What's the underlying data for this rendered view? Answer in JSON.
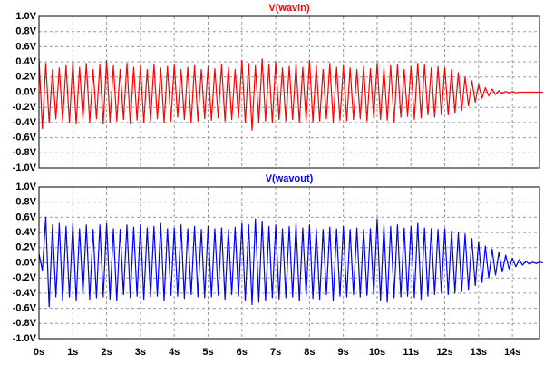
{
  "chart_data": [
    {
      "type": "line",
      "title": "V(wavin)",
      "color": "#ff0000",
      "grid": true,
      "xlim": [
        0,
        14.8
      ],
      "xticks": [
        0,
        1,
        2,
        3,
        4,
        5,
        6,
        7,
        8,
        9,
        10,
        11,
        12,
        13,
        14
      ],
      "ylim": [
        -1,
        1
      ],
      "yticks": [
        {
          "value": 1,
          "label": "1.0V"
        },
        {
          "value": 0.8,
          "label": "0.8V"
        },
        {
          "value": 0.6,
          "label": "0.6V"
        },
        {
          "value": 0.4,
          "label": "0.4V"
        },
        {
          "value": 0.2,
          "label": "0.2V"
        },
        {
          "value": 0,
          "label": "0.0V"
        },
        {
          "value": -0.2,
          "label": "-0.2V"
        },
        {
          "value": -0.4,
          "label": "-0.4V"
        },
        {
          "value": -0.6,
          "label": "-0.6V"
        },
        {
          "value": -0.8,
          "label": "-0.8V"
        },
        {
          "value": -1,
          "label": "-1.0V"
        }
      ],
      "x": [
        0,
        0.1,
        0.2,
        0.3,
        0.4,
        0.5,
        0.6,
        0.7,
        0.8,
        0.9,
        1,
        1.1,
        1.2,
        1.3,
        1.4,
        1.5,
        1.6,
        1.7,
        1.8,
        1.9,
        2,
        2.1,
        2.2,
        2.3,
        2.4,
        2.5,
        2.6,
        2.7,
        2.8,
        2.9,
        3,
        3.1,
        3.2,
        3.3,
        3.4,
        3.5,
        3.6,
        3.7,
        3.8,
        3.9,
        4,
        4.1,
        4.2,
        4.3,
        4.4,
        4.5,
        4.6,
        4.7,
        4.8,
        4.9,
        5,
        5.1,
        5.2,
        5.3,
        5.4,
        5.5,
        5.6,
        5.7,
        5.8,
        5.9,
        6,
        6.1,
        6.2,
        6.3,
        6.4,
        6.5,
        6.6,
        6.7,
        6.8,
        6.9,
        7,
        7.1,
        7.2,
        7.3,
        7.4,
        7.5,
        7.6,
        7.7,
        7.8,
        7.9,
        8,
        8.1,
        8.2,
        8.3,
        8.4,
        8.5,
        8.6,
        8.7,
        8.8,
        8.9,
        9,
        9.1,
        9.2,
        9.3,
        9.4,
        9.5,
        9.6,
        9.7,
        9.8,
        9.9,
        10,
        10.1,
        10.2,
        10.3,
        10.4,
        10.5,
        10.6,
        10.7,
        10.8,
        10.9,
        11,
        11.1,
        11.2,
        11.3,
        11.4,
        11.5,
        11.6,
        11.7,
        11.8,
        11.9,
        12,
        12.1,
        12.2,
        12.3,
        12.4,
        12.5,
        12.6,
        12.7,
        12.8,
        12.9,
        13,
        13.1,
        13.2,
        13.3,
        13.4,
        13.5,
        13.6,
        13.7,
        13.8,
        13.9,
        14,
        14.1,
        14.2,
        14.3,
        14.4,
        14.5,
        14.6,
        14.7,
        14.8,
        14.9
      ],
      "values": [
        0.45,
        -0.48,
        0.38,
        -0.4,
        0.3,
        -0.35,
        0.32,
        -0.38,
        0.35,
        -0.4,
        0.4,
        -0.42,
        0.33,
        -0.36,
        0.38,
        -0.4,
        0.3,
        -0.35,
        0.36,
        -0.42,
        0.42,
        -0.4,
        0.35,
        -0.38,
        0.3,
        -0.36,
        0.38,
        -0.42,
        0.33,
        -0.37,
        0.35,
        -0.4,
        0.3,
        -0.38,
        0.37,
        -0.35,
        0.32,
        -0.4,
        0.34,
        -0.38,
        0.36,
        -0.33,
        0.3,
        -0.36,
        0.33,
        -0.4,
        0.35,
        -0.38,
        0.3,
        -0.35,
        0.34,
        -0.37,
        0.31,
        -0.34,
        0.36,
        -0.38,
        0.33,
        -0.36,
        0.3,
        -0.34,
        0.42,
        -0.4,
        0.38,
        -0.5,
        0.35,
        -0.4,
        0.44,
        -0.38,
        0.36,
        -0.4,
        0.4,
        -0.36,
        0.32,
        -0.38,
        0.34,
        -0.36,
        0.37,
        -0.4,
        0.33,
        -0.38,
        0.42,
        -0.39,
        0.35,
        -0.38,
        0.3,
        -0.35,
        0.38,
        -0.4,
        0.33,
        -0.37,
        0.35,
        -0.38,
        0.32,
        -0.36,
        0.3,
        -0.35,
        0.34,
        -0.38,
        0.31,
        -0.34,
        0.38,
        -0.36,
        0.32,
        -0.37,
        0.35,
        -0.4,
        0.36,
        -0.33,
        0.3,
        -0.32,
        0.34,
        -0.36,
        0.38,
        -0.34,
        0.36,
        -0.3,
        0.32,
        -0.33,
        0.34,
        -0.3,
        0.32,
        -0.3,
        0.3,
        -0.28,
        0.26,
        -0.24,
        0.2,
        -0.18,
        0.15,
        -0.13,
        0.1,
        -0.08,
        0.06,
        -0.05,
        0.04,
        -0.03,
        0.02,
        -0.02,
        0.01,
        -0.01,
        0.01,
        -0.01,
        0,
        0,
        0,
        0,
        0,
        0,
        0,
        0
      ]
    },
    {
      "type": "line",
      "title": "V(wavout)",
      "color": "#0000ff",
      "grid": true,
      "xlim": [
        0,
        14.8
      ],
      "xticks": [
        {
          "value": 0,
          "label": "0s"
        },
        {
          "value": 1,
          "label": "1s"
        },
        {
          "value": 2,
          "label": "2s"
        },
        {
          "value": 3,
          "label": "3s"
        },
        {
          "value": 4,
          "label": "4s"
        },
        {
          "value": 5,
          "label": "5s"
        },
        {
          "value": 6,
          "label": "6s"
        },
        {
          "value": 7,
          "label": "7s"
        },
        {
          "value": 8,
          "label": "8s"
        },
        {
          "value": 9,
          "label": "9s"
        },
        {
          "value": 10,
          "label": "10s"
        },
        {
          "value": 11,
          "label": "11s"
        },
        {
          "value": 12,
          "label": "12s"
        },
        {
          "value": 13,
          "label": "13s"
        },
        {
          "value": 14,
          "label": "14s"
        }
      ],
      "ylim": [
        -1,
        1
      ],
      "yticks": [
        {
          "value": 1,
          "label": "1.0V"
        },
        {
          "value": 0.8,
          "label": "0.8V"
        },
        {
          "value": 0.6,
          "label": "0.6V"
        },
        {
          "value": 0.4,
          "label": "0.4V"
        },
        {
          "value": 0.2,
          "label": "0.2V"
        },
        {
          "value": 0,
          "label": "0.0V"
        },
        {
          "value": -0.2,
          "label": "-0.2V"
        },
        {
          "value": -0.4,
          "label": "-0.4V"
        },
        {
          "value": -0.6,
          "label": "-0.6V"
        },
        {
          "value": -0.8,
          "label": "-0.8V"
        },
        {
          "value": -1,
          "label": "-1.0V"
        }
      ],
      "x": [
        0,
        0.1,
        0.2,
        0.3,
        0.4,
        0.5,
        0.6,
        0.7,
        0.8,
        0.9,
        1,
        1.1,
        1.2,
        1.3,
        1.4,
        1.5,
        1.6,
        1.7,
        1.8,
        1.9,
        2,
        2.1,
        2.2,
        2.3,
        2.4,
        2.5,
        2.6,
        2.7,
        2.8,
        2.9,
        3,
        3.1,
        3.2,
        3.3,
        3.4,
        3.5,
        3.6,
        3.7,
        3.8,
        3.9,
        4,
        4.1,
        4.2,
        4.3,
        4.4,
        4.5,
        4.6,
        4.7,
        4.8,
        4.9,
        5,
        5.1,
        5.2,
        5.3,
        5.4,
        5.5,
        5.6,
        5.7,
        5.8,
        5.9,
        6,
        6.1,
        6.2,
        6.3,
        6.4,
        6.5,
        6.6,
        6.7,
        6.8,
        6.9,
        7,
        7.1,
        7.2,
        7.3,
        7.4,
        7.5,
        7.6,
        7.7,
        7.8,
        7.9,
        8,
        8.1,
        8.2,
        8.3,
        8.4,
        8.5,
        8.6,
        8.7,
        8.8,
        8.9,
        9,
        9.1,
        9.2,
        9.3,
        9.4,
        9.5,
        9.6,
        9.7,
        9.8,
        9.9,
        10,
        10.1,
        10.2,
        10.3,
        10.4,
        10.5,
        10.6,
        10.7,
        10.8,
        10.9,
        11,
        11.1,
        11.2,
        11.3,
        11.4,
        11.5,
        11.6,
        11.7,
        11.8,
        11.9,
        12,
        12.1,
        12.2,
        12.3,
        12.4,
        12.5,
        12.6,
        12.7,
        12.8,
        12.9,
        13,
        13.1,
        13.2,
        13.3,
        13.4,
        13.5,
        13.6,
        13.7,
        13.8,
        13.9,
        14,
        14.1,
        14.2,
        14.3,
        14.4,
        14.5,
        14.6,
        14.7,
        14.8,
        14.9
      ],
      "values": [
        0.12,
        -0.1,
        0.6,
        -0.58,
        0.5,
        -0.45,
        0.52,
        -0.5,
        0.48,
        -0.45,
        0.52,
        -0.5,
        0.45,
        -0.42,
        0.5,
        -0.48,
        0.44,
        -0.46,
        0.5,
        -0.45,
        0.52,
        -0.48,
        0.45,
        -0.5,
        0.44,
        -0.42,
        0.5,
        -0.46,
        0.47,
        -0.44,
        0.5,
        -0.48,
        0.46,
        -0.45,
        0.48,
        -0.44,
        0.52,
        -0.5,
        0.45,
        -0.43,
        0.46,
        -0.44,
        0.5,
        -0.47,
        0.45,
        -0.42,
        0.48,
        -0.45,
        0.44,
        -0.46,
        0.48,
        -0.45,
        0.45,
        -0.43,
        0.46,
        -0.48,
        0.44,
        -0.42,
        0.47,
        -0.44,
        0.52,
        -0.5,
        0.5,
        -0.55,
        0.58,
        -0.52,
        0.55,
        -0.5,
        0.48,
        -0.46,
        0.5,
        -0.48,
        0.45,
        -0.46,
        0.48,
        -0.45,
        0.52,
        -0.5,
        0.46,
        -0.44,
        0.5,
        -0.47,
        0.45,
        -0.48,
        0.44,
        -0.42,
        0.47,
        -0.5,
        0.45,
        -0.44,
        0.48,
        -0.45,
        0.44,
        -0.42,
        0.46,
        -0.45,
        0.44,
        -0.43,
        0.45,
        -0.42,
        0.58,
        -0.5,
        0.5,
        -0.52,
        0.48,
        -0.46,
        0.5,
        -0.45,
        0.46,
        -0.44,
        0.48,
        -0.46,
        0.52,
        -0.48,
        0.46,
        -0.44,
        0.45,
        -0.42,
        0.44,
        -0.4,
        0.45,
        -0.42,
        0.42,
        -0.4,
        0.4,
        -0.38,
        0.38,
        -0.35,
        0.32,
        -0.3,
        0.28,
        -0.26,
        0.22,
        -0.2,
        0.18,
        -0.16,
        0.14,
        -0.12,
        0.1,
        -0.08,
        0.06,
        -0.05,
        0.04,
        -0.03,
        0.02,
        -0.02,
        0.01,
        -0.01,
        0.01,
        0
      ]
    }
  ]
}
